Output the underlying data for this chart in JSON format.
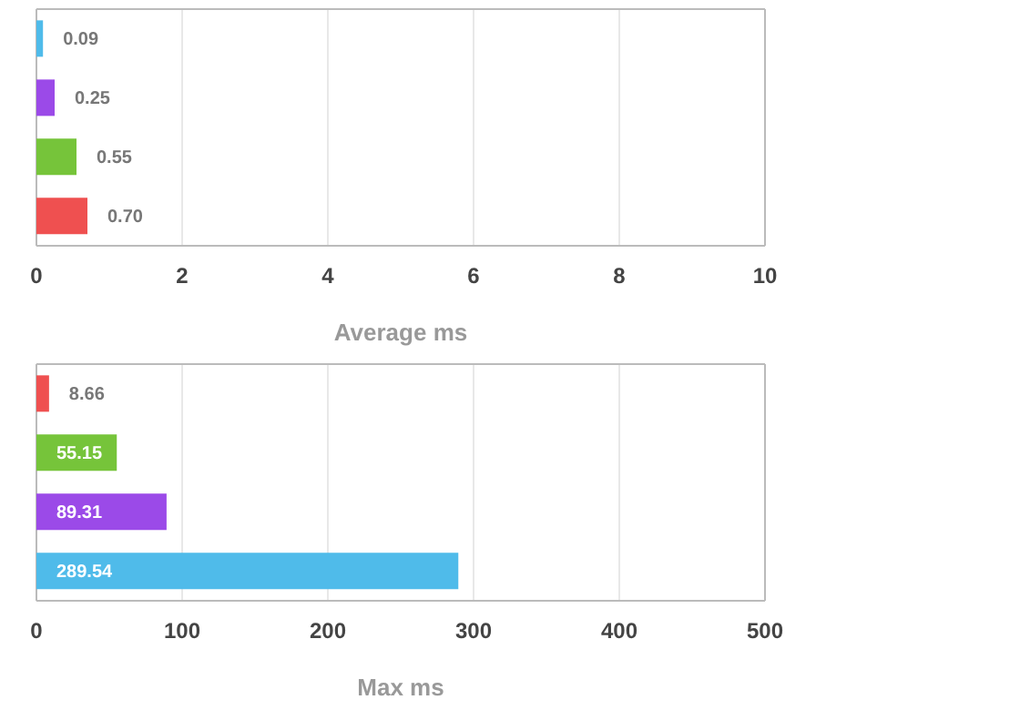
{
  "chart_data": [
    {
      "type": "bar",
      "orientation": "horizontal",
      "categories": [
        null,
        null,
        null,
        null
      ],
      "values": [
        0.09,
        0.25,
        0.55,
        0.7
      ],
      "colors": [
        "#4fbbea",
        "#9b4ae8",
        "#76c43a",
        "#ef5050"
      ],
      "value_labels": [
        "0.09",
        "0.25",
        "0.55",
        "0.70"
      ],
      "xlim": [
        0,
        10
      ],
      "xticks": [
        0,
        2,
        4,
        6,
        8,
        10
      ],
      "xlabel": "Average ms",
      "grid": "x"
    },
    {
      "type": "bar",
      "orientation": "horizontal",
      "categories": [
        null,
        null,
        null,
        null
      ],
      "values": [
        8.66,
        55.15,
        89.31,
        289.54
      ],
      "colors": [
        "#ef5050",
        "#76c43a",
        "#9b4ae8",
        "#4fbbea"
      ],
      "value_labels": [
        "8.66",
        "55.15",
        "89.31",
        "289.54"
      ],
      "xlim": [
        0,
        500
      ],
      "xticks": [
        0,
        100,
        200,
        300,
        400,
        500
      ],
      "xlabel": "Max ms",
      "grid": "x"
    }
  ]
}
